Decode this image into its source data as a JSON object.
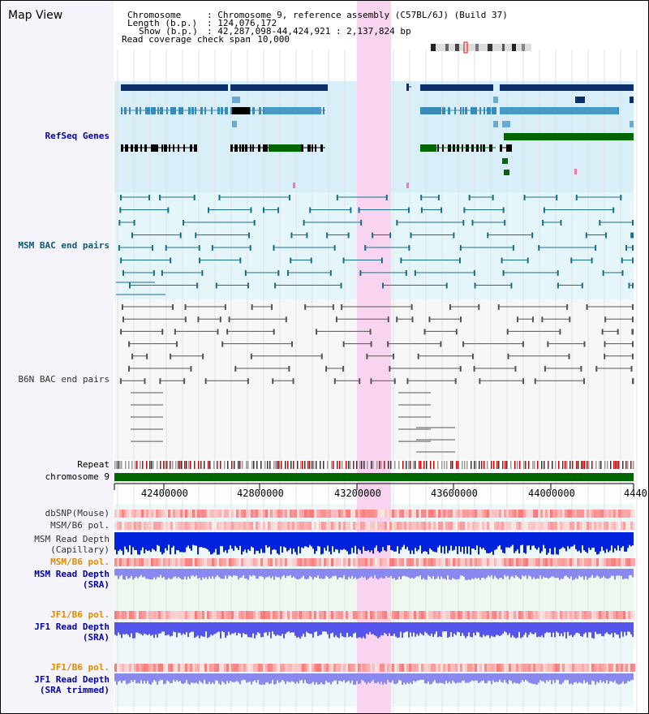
{
  "title": "Map View",
  "header": {
    "chromosome_key": "Chromosome",
    "chromosome_val": ": Chromosome 9, reference assembly (C57BL/6J) (Build 37)",
    "length_key": "Length (b.p.)",
    "length_val": ": 124,076,172",
    "show_key": "Show (b.p.)",
    "show_val": ": 42,287,098-44,424,921 : 2,137,824 bp",
    "span_key": "Read coverage check span",
    "span_val": ": 10,000"
  },
  "tracks": {
    "refseq": "RefSeq Genes",
    "msm_bac": "MSM BAC end pairs",
    "b6n_bac": "B6N BAC end pairs",
    "repeat": "Repeat",
    "chromosome": "chromosome 9",
    "dbsnp": "dbSNP(Mouse)",
    "msm_b6_pol_1": "MSM/B6 pol.",
    "msm_depth_cap_1": "MSM Read Depth",
    "msm_depth_cap_2": "(Capillary)",
    "msm_b6_pol_2": "MSM/B6 pol.",
    "msm_depth_sra_1": "MSM Read Depth",
    "msm_depth_sra_2": "(SRA)",
    "jf1_b6_pol_1": "JF1/B6 pol.",
    "jf1_depth_sra_1": "JF1 Read Depth",
    "jf1_depth_sra_2": "(SRA)",
    "jf1_b6_pol_2": "JF1/B6 pol.",
    "jf1_depth_trim_1": "JF1 Read Depth",
    "jf1_depth_trim_2": "(SRA trimmed)"
  },
  "axis": {
    "ticks": [
      "42400000",
      "42800000",
      "43200000",
      "43600000",
      "44000000",
      "4440"
    ]
  },
  "colors": {
    "refseq_bg": "#d8eef8",
    "msm_bg": "#e4f6fa",
    "highlight": "#f8d4f0",
    "gene_dark": "#0a2f6a",
    "gene_mid": "#3a8ab8",
    "gene_green": "#006600",
    "bac_teal": "#1a6f8a",
    "bac_grey": "#555555",
    "label_blue": "#0000aa",
    "label_teal": "#0a5a7a",
    "label_orange": "#e08a00"
  }
}
